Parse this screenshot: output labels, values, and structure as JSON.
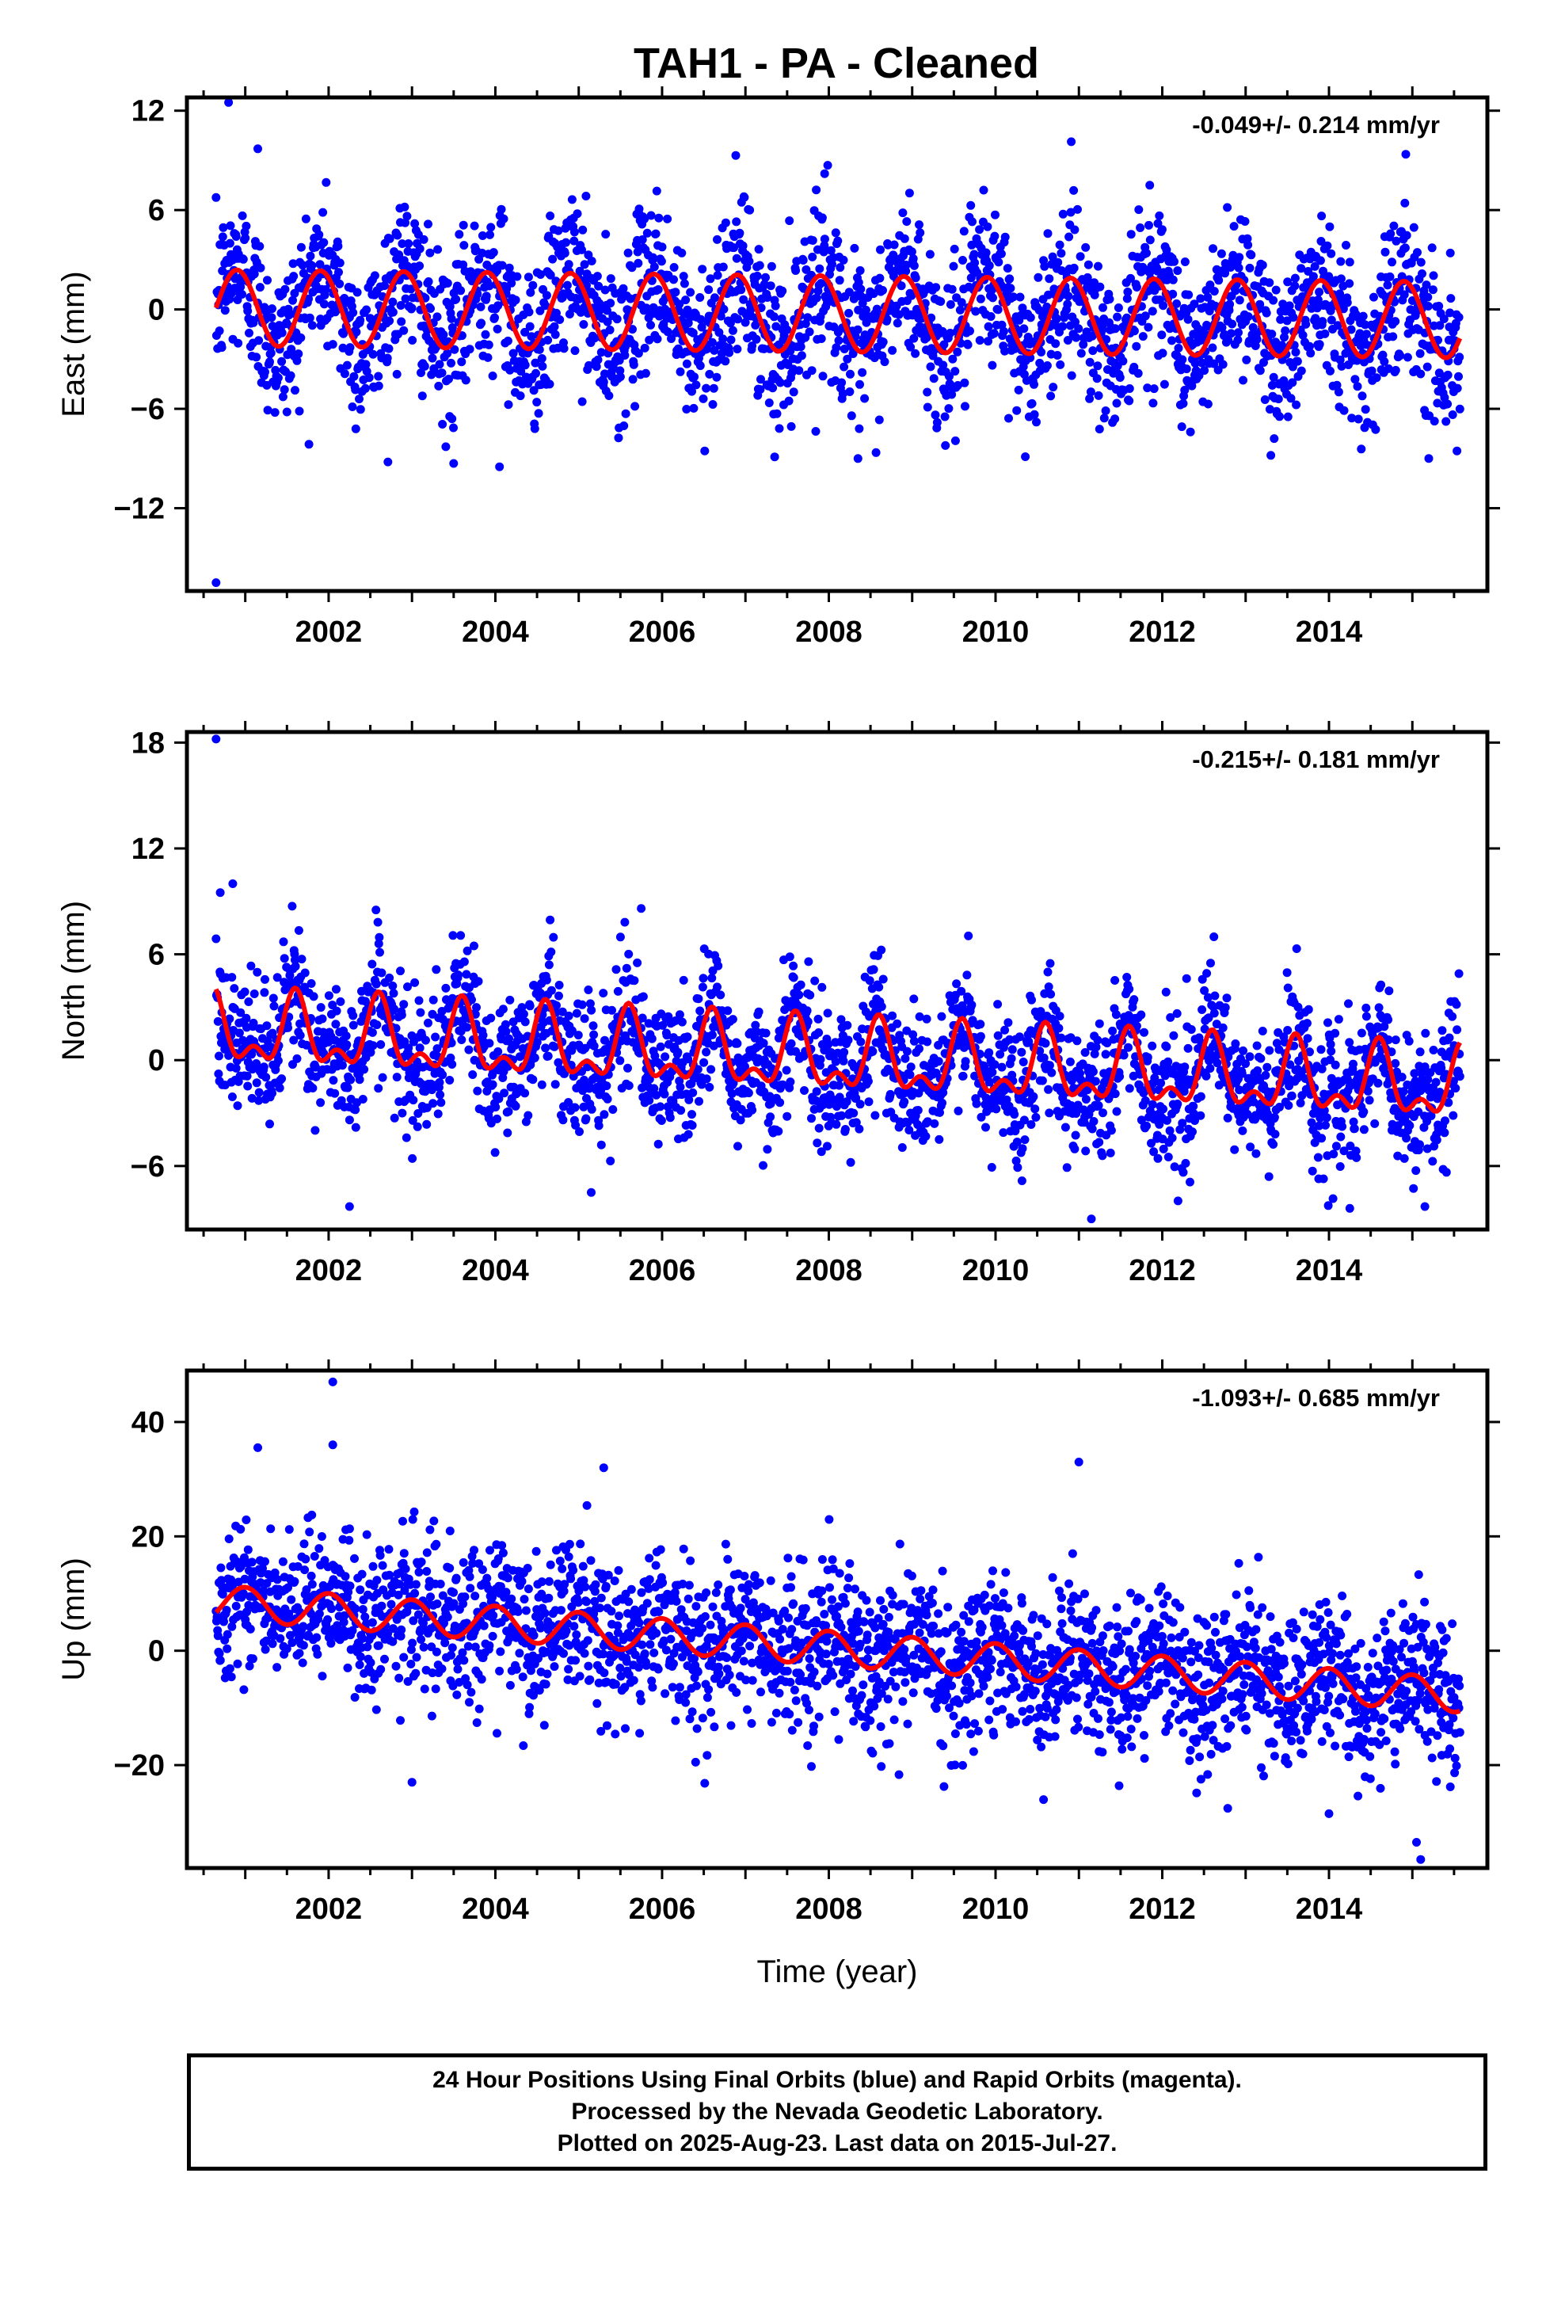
{
  "title": "TAH1  - PA - Cleaned",
  "footer": {
    "line1": "24 Hour Positions Using Final Orbits (blue) and Rapid Orbits (magenta).",
    "line2": "Processed by the Nevada Geodetic Laboratory.",
    "line3": "Plotted on 2025-Aug-23. Last data on 2015-Jul-27."
  },
  "colors": {
    "points": "#0000ff",
    "model": "#ff0000",
    "axes": "#000000"
  },
  "chart_data": [
    {
      "type": "scatter",
      "ylabel": "East (mm)",
      "xlabel": "",
      "rate_label": "-0.049+/- 0.214 mm/yr",
      "xlim": [
        2000.3,
        2015.9
      ],
      "ylim": [
        -17,
        12.8
      ],
      "xticks": [
        "2002",
        "2004",
        "2006",
        "2008",
        "2010",
        "2012",
        "2014"
      ],
      "yticks": [
        "12",
        "6",
        "0",
        "-6",
        "-12"
      ],
      "x_range_data": [
        2000.65,
        2015.57
      ],
      "series": [
        {
          "role": "daily-positions",
          "scatter_sd_mm": 2.4,
          "outliers": [
            [
              2000.65,
              -16.5
            ],
            [
              2000.8,
              12.5
            ],
            [
              2001.15,
              9.7
            ],
            [
              2003.5,
              -9.3
            ],
            [
              2004.05,
              -9.5
            ],
            [
              2007.35,
              -8.9
            ],
            [
              2007.95,
              8.2
            ],
            [
              2008.35,
              -9.0
            ],
            [
              2011.85,
              7.5
            ]
          ]
        },
        {
          "role": "model-fit",
          "offset_mm": 0.1,
          "rate_mm_per_yr": -0.049,
          "annual_amp_mm": 2.3,
          "annual_peak": 2000.9,
          "semiannual_amp_mm": 0.0
        }
      ]
    },
    {
      "type": "scatter",
      "ylabel": "North (mm)",
      "xlabel": "",
      "rate_label": "-0.215+/- 0.181 mm/yr",
      "xlim": [
        2000.3,
        2015.9
      ],
      "ylim": [
        -9.6,
        18.6
      ],
      "xticks": [
        "2002",
        "2004",
        "2006",
        "2008",
        "2010",
        "2012",
        "2014"
      ],
      "yticks": [
        "18",
        "12",
        "6",
        "0",
        "-6"
      ],
      "x_range_data": [
        2000.65,
        2015.57
      ],
      "series": [
        {
          "role": "daily-positions",
          "scatter_sd_mm": 1.9,
          "outliers": [
            [
              2000.65,
              18.2
            ],
            [
              2000.7,
              9.5
            ],
            [
              2000.85,
              10.0
            ],
            [
              2002.25,
              -8.3
            ],
            [
              2005.75,
              8.6
            ],
            [
              2005.15,
              -7.5
            ],
            [
              2011.15,
              -9.0
            ],
            [
              2014.25,
              -8.4
            ],
            [
              2015.15,
              -8.3
            ]
          ]
        },
        {
          "role": "model-fit",
          "offset_mm": 1.6,
          "rate_mm_per_yr": -0.215,
          "annual_amp_mm": 1.7,
          "annual_peak": 2000.6,
          "semiannual_amp_mm": 1.0
        }
      ]
    },
    {
      "type": "scatter",
      "ylabel": "Up (mm)",
      "xlabel": "Time (year)",
      "rate_label": "-1.093+/- 0.685 mm/yr",
      "xlim": [
        2000.3,
        2015.9
      ],
      "ylim": [
        -38,
        49
      ],
      "xticks": [
        "2002",
        "2004",
        "2006",
        "2008",
        "2010",
        "2012",
        "2014"
      ],
      "yticks": [
        "40",
        "20",
        "0",
        "-20"
      ],
      "x_range_data": [
        2000.65,
        2015.57
      ],
      "series": [
        {
          "role": "daily-positions",
          "scatter_sd_mm": 6.5,
          "outliers": [
            [
              2002.05,
              47.0
            ],
            [
              2002.05,
              36.0
            ],
            [
              2001.15,
              35.5
            ],
            [
              2005.3,
              32.0
            ],
            [
              2011.0,
              33.0
            ],
            [
              2015.05,
              -33.5
            ],
            [
              2015.1,
              -36.5
            ],
            [
              2014.0,
              -28.5
            ],
            [
              2003.0,
              -23.0
            ]
          ]
        },
        {
          "role": "model-fit",
          "offset_mm": 8.5,
          "rate_mm_per_yr": -1.093,
          "annual_amp_mm": 3.0,
          "annual_peak": 2001.0,
          "semiannual_amp_mm": 0.0
        }
      ]
    }
  ]
}
